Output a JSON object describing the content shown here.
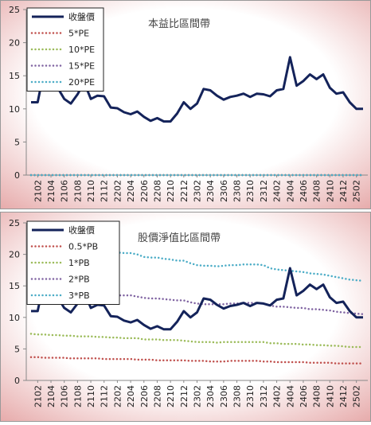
{
  "chart_data": [
    {
      "type": "line",
      "title": "本益比區間帶",
      "categories": [
        null,
        "2102",
        null,
        "2104",
        null,
        "2106",
        null,
        "2108",
        null,
        "2110",
        null,
        "2112",
        null,
        "2202",
        null,
        "2204",
        null,
        "2206",
        null,
        "2208",
        null,
        "2210",
        null,
        "2212",
        null,
        "2302",
        null,
        "2304",
        null,
        "2306",
        null,
        "2308",
        null,
        "2310",
        null,
        "2312",
        null,
        "2402",
        null,
        "2404",
        null,
        "2406",
        null,
        "2408",
        null,
        "2410",
        null,
        "2412",
        null,
        "2502",
        null
      ],
      "ylim": [
        0,
        25
      ],
      "yticks": [
        0,
        5,
        10,
        15,
        20,
        25
      ],
      "legend": "upper left",
      "series": [
        {
          "name": "收盤價",
          "color": "#14235a",
          "style": "solid",
          "values": [
            11,
            11,
            16,
            14.5,
            13.2,
            11.5,
            10.8,
            12.2,
            14,
            11.5,
            12,
            11.9,
            10.2,
            10.1,
            9.5,
            9.2,
            9.6,
            8.8,
            8.2,
            8.6,
            8.1,
            8.1,
            9.3,
            11,
            10,
            10.8,
            13,
            12.8,
            12,
            11.4,
            11.8,
            12,
            12.3,
            11.8,
            12.3,
            12.2,
            11.9,
            12.8,
            13,
            17.8,
            13.5,
            14.2,
            15.2,
            14.5,
            15.2,
            13.2,
            12.3,
            12.5,
            11,
            10,
            10
          ]
        },
        {
          "name": "5*PE",
          "color": "#c0504d",
          "style": "dotted",
          "values": [
            0,
            0,
            0,
            0,
            0,
            0,
            0,
            0,
            0,
            0,
            0,
            0,
            0,
            0,
            0,
            0,
            0,
            0,
            0,
            0,
            0,
            0,
            0,
            0,
            0,
            0,
            0,
            0,
            0,
            0,
            0,
            0,
            0,
            0,
            0,
            0,
            0,
            0,
            0,
            0,
            0,
            0,
            0,
            0,
            0,
            0,
            0,
            0,
            0,
            0,
            0
          ]
        },
        {
          "name": "10*PE",
          "color": "#9bbb59",
          "style": "dotted",
          "values": [
            0,
            0,
            0,
            0,
            0,
            0,
            0,
            0,
            0,
            0,
            0,
            0,
            0,
            0,
            0,
            0,
            0,
            0,
            0,
            0,
            0,
            0,
            0,
            0,
            0,
            0,
            0,
            0,
            0,
            0,
            0,
            0,
            0,
            0,
            0,
            0,
            0,
            0,
            0,
            0,
            0,
            0,
            0,
            0,
            0,
            0,
            0,
            0,
            0,
            0,
            0
          ]
        },
        {
          "name": "15*PE",
          "color": "#8064a2",
          "style": "dotted",
          "values": [
            0,
            0,
            0,
            0,
            0,
            0,
            0,
            0,
            0,
            0,
            0,
            0,
            0,
            0,
            0,
            0,
            0,
            0,
            0,
            0,
            0,
            0,
            0,
            0,
            0,
            0,
            0,
            0,
            0,
            0,
            0,
            0,
            0,
            0,
            0,
            0,
            0,
            0,
            0,
            0,
            0,
            0,
            0,
            0,
            0,
            0,
            0,
            0,
            0,
            0,
            0
          ]
        },
        {
          "name": "20*PE",
          "color": "#4bacc6",
          "style": "dotted",
          "values": [
            0,
            0,
            0,
            0,
            0,
            0,
            0,
            0,
            0,
            0,
            0,
            0,
            0,
            0,
            0,
            0,
            0,
            0,
            0,
            0,
            0,
            0,
            0,
            0,
            0,
            0,
            0,
            0,
            0,
            0,
            0,
            0,
            0,
            0,
            0,
            0,
            0,
            0,
            0,
            0,
            0,
            0,
            0,
            0,
            0,
            0,
            0,
            0,
            0,
            0,
            0
          ]
        }
      ]
    },
    {
      "type": "line",
      "title": "股價淨值比區間帶",
      "categories": [
        null,
        "2102",
        null,
        "2104",
        null,
        "2106",
        null,
        "2108",
        null,
        "2110",
        null,
        "2112",
        null,
        "2202",
        null,
        "2204",
        null,
        "2206",
        null,
        "2208",
        null,
        "2210",
        null,
        "2212",
        null,
        "2302",
        null,
        "2304",
        null,
        "2306",
        null,
        "2308",
        null,
        "2310",
        null,
        "2312",
        null,
        "2402",
        null,
        "2404",
        null,
        "2406",
        null,
        "2408",
        null,
        "2410",
        null,
        "2412",
        null,
        "2502",
        null
      ],
      "ylim": [
        0,
        25
      ],
      "yticks": [
        0,
        5,
        10,
        15,
        20,
        25
      ],
      "legend": "upper left",
      "series": [
        {
          "name": "收盤價",
          "color": "#14235a",
          "style": "solid",
          "values": [
            11,
            11,
            16,
            14.5,
            13.2,
            11.5,
            10.8,
            12.2,
            14,
            11.5,
            12,
            11.9,
            10.2,
            10.1,
            9.5,
            9.2,
            9.6,
            8.8,
            8.2,
            8.6,
            8.1,
            8.1,
            9.3,
            11,
            10,
            10.8,
            13,
            12.8,
            12,
            11.4,
            11.8,
            12,
            12.3,
            11.8,
            12.3,
            12.2,
            11.9,
            12.8,
            13,
            17.8,
            13.5,
            14.2,
            15.2,
            14.5,
            15.2,
            13.2,
            12.3,
            12.5,
            11,
            10,
            10
          ]
        },
        {
          "name": "0.5*PB",
          "color": "#c0504d",
          "style": "dotted",
          "values": [
            3.7,
            3.7,
            3.6,
            3.6,
            3.6,
            3.6,
            3.5,
            3.5,
            3.5,
            3.5,
            3.5,
            3.4,
            3.4,
            3.4,
            3.4,
            3.4,
            3.3,
            3.3,
            3.3,
            3.2,
            3.2,
            3.2,
            3.2,
            3.2,
            3.1,
            3.1,
            3.1,
            3.0,
            3.0,
            3.0,
            3.1,
            3.1,
            3.1,
            3.1,
            3.1,
            3.0,
            3.0,
            2.9,
            2.9,
            2.9,
            2.9,
            2.9,
            2.8,
            2.8,
            2.8,
            2.8,
            2.7,
            2.7,
            2.7,
            2.7,
            2.7
          ]
        },
        {
          "name": "1*PB",
          "color": "#9bbb59",
          "style": "dotted",
          "values": [
            7.4,
            7.3,
            7.3,
            7.2,
            7.2,
            7.1,
            7.1,
            7.0,
            7.0,
            7.0,
            6.9,
            6.9,
            6.8,
            6.8,
            6.7,
            6.7,
            6.7,
            6.5,
            6.5,
            6.5,
            6.4,
            6.4,
            6.4,
            6.3,
            6.2,
            6.1,
            6.1,
            6.1,
            6.0,
            6.1,
            6.1,
            6.1,
            6.1,
            6.1,
            6.1,
            6.1,
            5.9,
            5.9,
            5.8,
            5.8,
            5.8,
            5.7,
            5.7,
            5.6,
            5.6,
            5.5,
            5.5,
            5.4,
            5.3,
            5.3,
            5.3
          ]
        },
        {
          "name": "2*PB",
          "color": "#8064a2",
          "style": "dotted",
          "values": [
            14.7,
            14.6,
            14.5,
            14.4,
            14.3,
            14.3,
            14.2,
            14.1,
            14.0,
            13.9,
            13.9,
            13.7,
            13.6,
            13.5,
            13.5,
            13.5,
            13.3,
            13.1,
            13.0,
            13.0,
            12.9,
            12.8,
            12.7,
            12.7,
            12.4,
            12.2,
            12.1,
            12.1,
            12.1,
            12.1,
            12.2,
            12.2,
            12.3,
            12.3,
            12.3,
            12.2,
            11.9,
            11.7,
            11.7,
            11.6,
            11.5,
            11.5,
            11.3,
            11.3,
            11.2,
            11.1,
            10.9,
            10.8,
            10.7,
            10.6,
            10.5
          ]
        },
        {
          "name": "3*PB",
          "color": "#4bacc6",
          "style": "dotted",
          "values": [
            22.0,
            21.9,
            21.8,
            21.6,
            21.5,
            21.4,
            21.3,
            21.2,
            21.0,
            20.9,
            20.8,
            20.6,
            20.4,
            20.3,
            20.2,
            20.2,
            20.0,
            19.6,
            19.5,
            19.5,
            19.3,
            19.2,
            19.0,
            19.0,
            18.6,
            18.3,
            18.2,
            18.2,
            18.1,
            18.2,
            18.3,
            18.3,
            18.4,
            18.4,
            18.4,
            18.3,
            17.8,
            17.6,
            17.5,
            17.4,
            17.3,
            17.2,
            17.0,
            16.9,
            16.8,
            16.6,
            16.4,
            16.2,
            16.0,
            15.9,
            15.8
          ]
        }
      ]
    }
  ]
}
